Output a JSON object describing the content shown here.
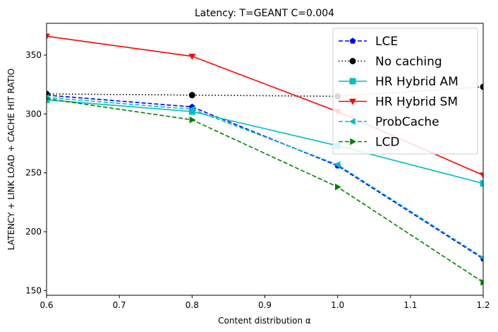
{
  "chart_data": {
    "type": "line",
    "title": "Latency: T=GEANT C=0.004",
    "xlabel": "Content distribution α",
    "ylabel": "LATENCY + LINK LOAD + CACHE HIT RATIO",
    "xlim": [
      0.6,
      1.2
    ],
    "ylim": [
      146,
      377
    ],
    "x_ticks": [
      "0.6",
      "0.7",
      "0.8",
      "0.9",
      "1.0",
      "1.1",
      "1.2"
    ],
    "y_ticks": [
      "150",
      "200",
      "250",
      "300",
      "350"
    ],
    "grid": false,
    "legend_position": "top-right",
    "x": [
      0.6,
      0.8,
      1.0,
      1.2
    ],
    "series": [
      {
        "name": "LCE",
        "values": [
          316,
          306,
          256,
          177
        ],
        "color": "#0000ff",
        "dash": "dashed",
        "marker": "pentagon"
      },
      {
        "name": "No caching",
        "values": [
          317,
          316,
          315,
          323
        ],
        "color": "#000000",
        "dash": "dotted",
        "marker": "circle"
      },
      {
        "name": "HR Hybrid AM",
        "values": [
          312,
          302,
          273,
          241
        ],
        "color": "#00bfbf",
        "dash": "solid",
        "marker": "square"
      },
      {
        "name": "HR Hybrid SM",
        "values": [
          366,
          349,
          302,
          248
        ],
        "color": "#ff0000",
        "dash": "solid",
        "marker": "triangle-down"
      },
      {
        "name": "ProbCache",
        "values": [
          314,
          304,
          257,
          178
        ],
        "color": "#00bfbf",
        "dash": "dashed",
        "marker": "triangle-left"
      },
      {
        "name": "LCD",
        "values": [
          313,
          295,
          238,
          157
        ],
        "color": "#008000",
        "dash": "dashed",
        "marker": "triangle-right"
      }
    ]
  }
}
